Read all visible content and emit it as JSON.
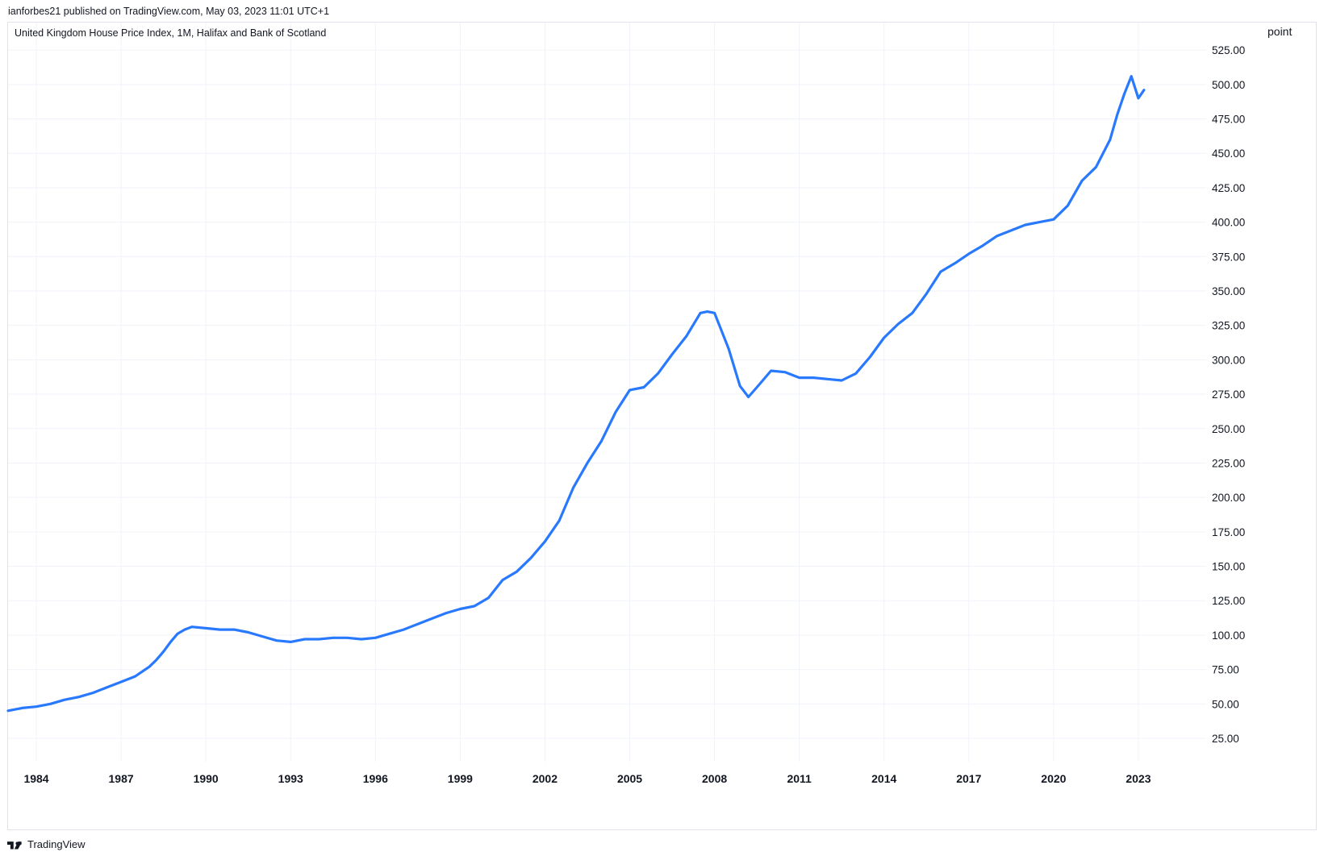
{
  "header": {
    "publisher": "ianforbes21 published on TradingView.com, May 03, 2023 11:01 UTC+1"
  },
  "legend": {
    "title": "United Kingdom House Price Index, 1M, Halifax and Bank of Scotland"
  },
  "axis": {
    "unit": "point"
  },
  "footer": {
    "brand": "TradingView",
    "logo_icon": "tradingview-logo-icon"
  },
  "colors": {
    "line": "#2979ff",
    "grid": "#f0f3fa",
    "border": "#e0e3eb",
    "text": "#131722"
  },
  "chart_data": {
    "type": "line",
    "title": "United Kingdom House Price Index, 1M, Halifax and Bank of Scotland",
    "ylabel": "point",
    "xlabel": "",
    "x_ticks": [
      "1984",
      "1987",
      "1990",
      "1993",
      "1996",
      "1999",
      "2002",
      "2005",
      "2008",
      "2011",
      "2014",
      "2017",
      "2020",
      "2023"
    ],
    "y_ticks": [
      "25.00",
      "50.00",
      "75.00",
      "100.00",
      "125.00",
      "150.00",
      "175.00",
      "200.00",
      "225.00",
      "250.00",
      "275.00",
      "300.00",
      "325.00",
      "350.00",
      "375.00",
      "400.00",
      "425.00",
      "450.00",
      "475.00",
      "500.00",
      "525.00"
    ],
    "ylim": [
      8,
      545
    ],
    "xlim": [
      1983.0,
      2025.4
    ],
    "grid": true,
    "legend": "top-left",
    "series": [
      {
        "x": [
          1983.0,
          1983.5,
          1984.0,
          1984.5,
          1985.0,
          1985.5,
          1986.0,
          1986.5,
          1987.0,
          1987.5,
          1988.0,
          1988.25,
          1988.5,
          1988.75,
          1989.0,
          1989.25,
          1989.5,
          1990.0,
          1990.5,
          1991.0,
          1991.5,
          1992.0,
          1992.5,
          1993.0,
          1993.5,
          1994.0,
          1994.5,
          1995.0,
          1995.5,
          1996.0,
          1996.5,
          1997.0,
          1997.5,
          1998.0,
          1998.5,
          1999.0,
          1999.5,
          2000.0,
          2000.5,
          2001.0,
          2001.5,
          2002.0,
          2002.5,
          2003.0,
          2003.5,
          2004.0,
          2004.5,
          2005.0,
          2005.5,
          2006.0,
          2006.5,
          2007.0,
          2007.5,
          2007.75,
          2008.0,
          2008.5,
          2008.9,
          2009.2,
          2009.5,
          2010.0,
          2010.5,
          2011.0,
          2011.5,
          2012.0,
          2012.5,
          2013.0,
          2013.5,
          2014.0,
          2014.5,
          2015.0,
          2015.5,
          2016.0,
          2016.5,
          2017.0,
          2017.5,
          2018.0,
          2018.5,
          2019.0,
          2019.5,
          2020.0,
          2020.5,
          2021.0,
          2021.5,
          2022.0,
          2022.25,
          2022.5,
          2022.75,
          2023.0,
          2023.2
        ],
        "values": [
          45,
          47,
          48,
          50,
          53,
          55,
          58,
          62,
          66,
          70,
          77,
          82,
          88,
          95,
          101,
          104,
          106,
          105,
          104,
          104,
          102,
          99,
          96,
          95,
          97,
          97,
          98,
          98,
          97,
          98,
          101,
          104,
          108,
          112,
          116,
          119,
          121,
          127,
          140,
          146,
          156,
          168,
          183,
          207,
          225,
          241,
          262,
          278,
          280,
          290,
          304,
          317,
          334,
          335,
          334,
          308,
          281,
          273,
          280,
          292,
          291,
          287,
          287,
          286,
          285,
          290,
          302,
          316,
          326,
          334,
          348,
          364,
          370,
          377,
          383,
          390,
          394,
          398,
          400,
          402,
          412,
          430,
          440,
          460,
          478,
          493,
          506,
          490,
          496
        ]
      }
    ]
  }
}
